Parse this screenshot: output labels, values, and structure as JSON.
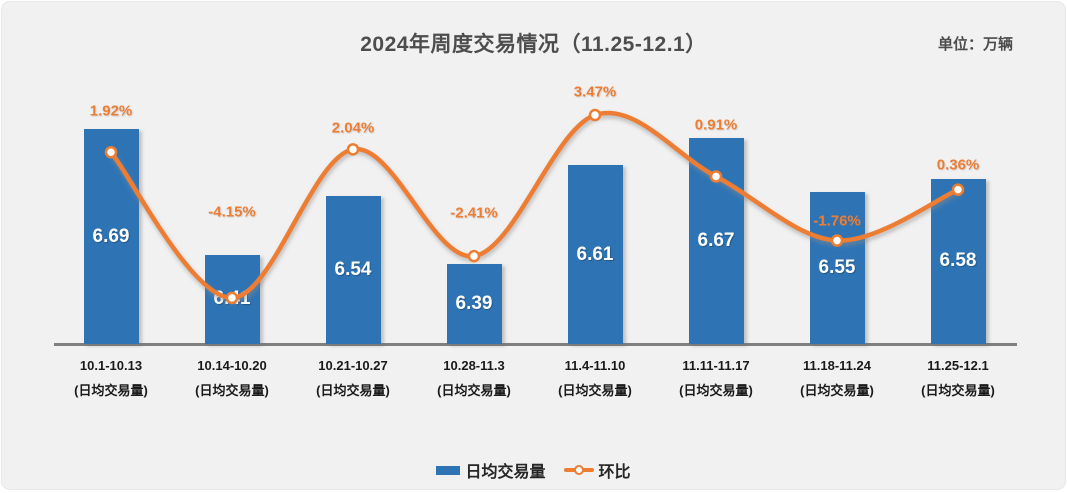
{
  "page": {
    "title": "2024年周度交易情况（11.25-12.1）",
    "unit_note": "单位：万辆"
  },
  "chart_data": {
    "type": "bar+line",
    "title": "2024年周度交易情况（11.25-12.1）",
    "unit_note": "单位：万辆",
    "categories": [
      "10.1-10.13",
      "10.14-10.20",
      "10.21-10.27",
      "10.28-11.3",
      "11.4-11.10",
      "11.11-11.17",
      "11.18-11.24",
      "11.25-12.1"
    ],
    "category_sublabel": "(日均交易量)",
    "series": [
      {
        "name": "日均交易量",
        "type": "bar",
        "color": "#2e74b5",
        "values": [
          6.69,
          6.41,
          6.54,
          6.39,
          6.61,
          6.67,
          6.55,
          6.58
        ],
        "data_labels": [
          "6.69",
          "6.41",
          "6.54",
          "6.39",
          "6.61",
          "6.67",
          "6.55",
          "6.58"
        ]
      },
      {
        "name": "环比",
        "type": "line",
        "color": "#ed7d31",
        "unit": "%",
        "values": [
          1.92,
          -4.15,
          2.04,
          -2.41,
          3.47,
          0.91,
          -1.76,
          0.36
        ],
        "data_labels": [
          "1.92%",
          "-4.15%",
          "2.04%",
          "-2.41%",
          "3.47%",
          "0.91%",
          "-1.76%",
          "0.36%"
        ]
      }
    ],
    "legend_position": "bottom",
    "grid": false,
    "y_axis_visible": false,
    "x_axis_line_visible": true
  },
  "colors": {
    "background": "#f1f1f2",
    "bar": "#2e74b5",
    "line": "#ed7d31",
    "axis_line": "#7f7f7f",
    "title_text": "#4d4d4d",
    "bar_value_text": "#ffffff",
    "percent_text": "#ed7d31",
    "category_text": "#1a1a1a"
  }
}
